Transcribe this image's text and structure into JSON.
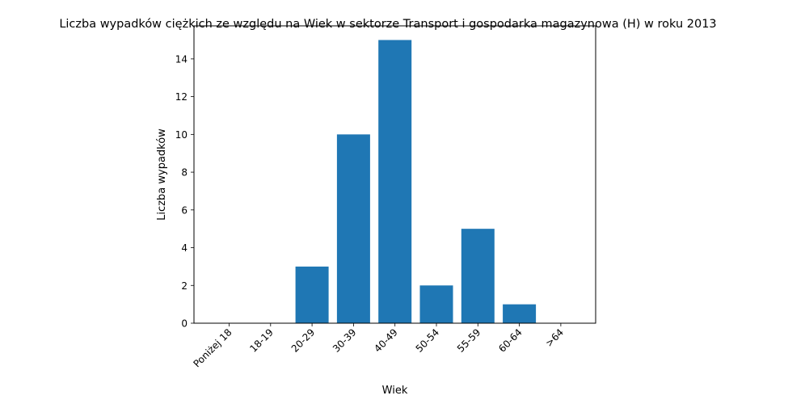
{
  "chart_data": {
    "type": "bar",
    "title": "Liczba wypadków ciężkich ze względu na Wiek w sektorze Transport i gospodarka magazynowa  (H)   w roku 2013",
    "xlabel": "Wiek",
    "ylabel": "Liczba wypadków",
    "categories": [
      "Poniżej 18",
      "18-19",
      "20-29",
      "30-39",
      "40-49",
      "50-54",
      "55-59",
      "60-64",
      ">64"
    ],
    "values": [
      0,
      0,
      3,
      10,
      15,
      2,
      5,
      1,
      0
    ],
    "ylim": [
      0,
      15.75
    ],
    "yticks": [
      0,
      2,
      4,
      6,
      8,
      10,
      12,
      14
    ],
    "grid": false,
    "bar_color": "#1f77b4"
  }
}
